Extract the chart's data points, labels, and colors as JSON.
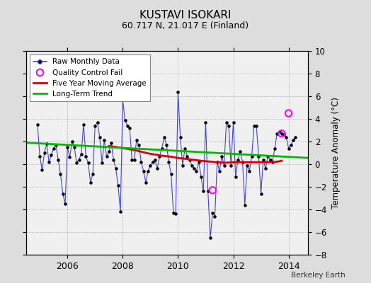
{
  "title": "KUSTAVI ISOKARI",
  "subtitle": "60.717 N, 21.017 E (Finland)",
  "ylabel": "Temperature Anomaly (°C)",
  "credit": "Berkeley Earth",
  "ylim": [
    -8,
    10
  ],
  "xlim": [
    2004.5,
    2014.7
  ],
  "yticks": [
    -8,
    -6,
    -4,
    -2,
    0,
    2,
    4,
    6,
    8,
    10
  ],
  "xticks": [
    2006,
    2008,
    2010,
    2012,
    2014
  ],
  "bg_color": "#dddddd",
  "plot_bg_color": "#f0f0f0",
  "raw_color": "#4444cc",
  "raw_dot_color": "#000000",
  "ma_color": "#dd0000",
  "trend_color": "#00bb00",
  "qc_fail_color": "#ff00ff",
  "raw_monthly": [
    [
      2004.917,
      3.5
    ],
    [
      2005.0,
      0.7
    ],
    [
      2005.083,
      -0.5
    ],
    [
      2005.167,
      1.0
    ],
    [
      2005.25,
      1.8
    ],
    [
      2005.333,
      0.2
    ],
    [
      2005.417,
      0.8
    ],
    [
      2005.5,
      1.4
    ],
    [
      2005.583,
      1.7
    ],
    [
      2005.667,
      0.4
    ],
    [
      2005.75,
      -0.9
    ],
    [
      2005.833,
      -2.6
    ],
    [
      2005.917,
      -3.5
    ],
    [
      2006.0,
      1.5
    ],
    [
      2006.083,
      0.6
    ],
    [
      2006.167,
      2.0
    ],
    [
      2006.25,
      1.5
    ],
    [
      2006.333,
      0.1
    ],
    [
      2006.417,
      0.4
    ],
    [
      2006.5,
      0.9
    ],
    [
      2006.583,
      3.5
    ],
    [
      2006.667,
      0.7
    ],
    [
      2006.75,
      0.1
    ],
    [
      2006.833,
      -1.6
    ],
    [
      2006.917,
      -0.9
    ],
    [
      2007.0,
      3.4
    ],
    [
      2007.083,
      3.7
    ],
    [
      2007.167,
      2.4
    ],
    [
      2007.25,
      0.1
    ],
    [
      2007.333,
      2.1
    ],
    [
      2007.417,
      0.7
    ],
    [
      2007.5,
      1.1
    ],
    [
      2007.583,
      1.9
    ],
    [
      2007.667,
      0.4
    ],
    [
      2007.75,
      -0.4
    ],
    [
      2007.833,
      -1.9
    ],
    [
      2007.917,
      -4.2
    ],
    [
      2008.0,
      5.7
    ],
    [
      2008.083,
      3.9
    ],
    [
      2008.167,
      3.4
    ],
    [
      2008.25,
      3.2
    ],
    [
      2008.333,
      0.4
    ],
    [
      2008.417,
      0.4
    ],
    [
      2008.5,
      2.1
    ],
    [
      2008.583,
      1.7
    ],
    [
      2008.667,
      0.2
    ],
    [
      2008.75,
      -0.6
    ],
    [
      2008.833,
      -1.6
    ],
    [
      2008.917,
      -0.6
    ],
    [
      2009.0,
      -0.1
    ],
    [
      2009.083,
      0.2
    ],
    [
      2009.167,
      0.4
    ],
    [
      2009.25,
      -0.4
    ],
    [
      2009.333,
      0.7
    ],
    [
      2009.417,
      1.4
    ],
    [
      2009.5,
      2.4
    ],
    [
      2009.583,
      1.7
    ],
    [
      2009.667,
      0.2
    ],
    [
      2009.75,
      -0.9
    ],
    [
      2009.833,
      -4.3
    ],
    [
      2009.917,
      -4.4
    ],
    [
      2010.0,
      6.4
    ],
    [
      2010.083,
      2.4
    ],
    [
      2010.167,
      -0.1
    ],
    [
      2010.25,
      1.4
    ],
    [
      2010.333,
      0.7
    ],
    [
      2010.417,
      0.4
    ],
    [
      2010.5,
      -0.1
    ],
    [
      2010.583,
      -0.4
    ],
    [
      2010.667,
      -0.6
    ],
    [
      2010.75,
      0.2
    ],
    [
      2010.833,
      -1.1
    ],
    [
      2010.917,
      -2.4
    ],
    [
      2011.0,
      3.7
    ],
    [
      2011.083,
      -2.4
    ],
    [
      2011.167,
      -6.5
    ],
    [
      2011.25,
      -4.3
    ],
    [
      2011.333,
      -4.6
    ],
    [
      2011.417,
      0.2
    ],
    [
      2011.5,
      -0.6
    ],
    [
      2011.583,
      0.7
    ],
    [
      2011.667,
      -0.1
    ],
    [
      2011.75,
      3.7
    ],
    [
      2011.833,
      3.4
    ],
    [
      2011.917,
      -0.1
    ],
    [
      2012.0,
      3.7
    ],
    [
      2012.083,
      -1.1
    ],
    [
      2012.167,
      0.4
    ],
    [
      2012.25,
      1.1
    ],
    [
      2012.333,
      0.2
    ],
    [
      2012.417,
      -3.6
    ],
    [
      2012.5,
      -0.1
    ],
    [
      2012.583,
      -0.6
    ],
    [
      2012.667,
      0.7
    ],
    [
      2012.75,
      3.4
    ],
    [
      2012.833,
      3.4
    ],
    [
      2012.917,
      0.7
    ],
    [
      2013.0,
      -2.6
    ],
    [
      2013.083,
      0.4
    ],
    [
      2013.167,
      -0.4
    ],
    [
      2013.25,
      0.7
    ],
    [
      2013.333,
      0.4
    ],
    [
      2013.417,
      0.2
    ],
    [
      2013.5,
      1.4
    ],
    [
      2013.583,
      2.7
    ],
    [
      2013.667,
      2.9
    ],
    [
      2013.75,
      2.7
    ],
    [
      2013.833,
      2.6
    ],
    [
      2013.917,
      2.4
    ],
    [
      2014.0,
      1.4
    ],
    [
      2014.083,
      1.7
    ],
    [
      2014.167,
      2.1
    ],
    [
      2014.25,
      2.4
    ]
  ],
  "qc_fail_points": [
    [
      2011.25,
      -2.3
    ],
    [
      2013.75,
      2.7
    ],
    [
      2014.0,
      4.5
    ]
  ],
  "moving_avg": [
    [
      2007.5,
      1.6
    ],
    [
      2007.583,
      1.58
    ],
    [
      2007.667,
      1.55
    ],
    [
      2007.75,
      1.52
    ],
    [
      2007.833,
      1.48
    ],
    [
      2007.917,
      1.45
    ],
    [
      2008.0,
      1.42
    ],
    [
      2008.083,
      1.38
    ],
    [
      2008.167,
      1.35
    ],
    [
      2008.25,
      1.32
    ],
    [
      2008.333,
      1.28
    ],
    [
      2008.417,
      1.25
    ],
    [
      2008.5,
      1.2
    ],
    [
      2008.583,
      1.15
    ],
    [
      2008.667,
      1.1
    ],
    [
      2008.75,
      1.05
    ],
    [
      2008.833,
      1.0
    ],
    [
      2008.917,
      0.95
    ],
    [
      2009.0,
      0.92
    ],
    [
      2009.083,
      0.88
    ],
    [
      2009.167,
      0.85
    ],
    [
      2009.25,
      0.82
    ],
    [
      2009.333,
      0.78
    ],
    [
      2009.417,
      0.75
    ],
    [
      2009.5,
      0.72
    ],
    [
      2009.583,
      0.7
    ],
    [
      2009.667,
      0.68
    ],
    [
      2009.75,
      0.65
    ],
    [
      2009.833,
      0.62
    ],
    [
      2009.917,
      0.58
    ],
    [
      2010.0,
      0.55
    ],
    [
      2010.083,
      0.52
    ],
    [
      2010.167,
      0.5
    ],
    [
      2010.25,
      0.48
    ],
    [
      2010.333,
      0.45
    ],
    [
      2010.417,
      0.42
    ],
    [
      2010.5,
      0.4
    ],
    [
      2010.583,
      0.38
    ],
    [
      2010.667,
      0.35
    ],
    [
      2010.75,
      0.33
    ],
    [
      2010.833,
      0.3
    ],
    [
      2010.917,
      0.28
    ],
    [
      2011.0,
      0.26
    ],
    [
      2011.083,
      0.24
    ],
    [
      2011.167,
      0.22
    ],
    [
      2011.25,
      0.2
    ],
    [
      2011.333,
      0.18
    ],
    [
      2011.417,
      0.16
    ],
    [
      2011.5,
      0.15
    ],
    [
      2011.583,
      0.14
    ],
    [
      2011.667,
      0.13
    ],
    [
      2011.75,
      0.13
    ],
    [
      2011.833,
      0.14
    ],
    [
      2011.917,
      0.15
    ],
    [
      2012.0,
      0.16
    ],
    [
      2012.083,
      0.16
    ],
    [
      2012.167,
      0.17
    ],
    [
      2012.25,
      0.17
    ],
    [
      2012.333,
      0.17
    ],
    [
      2012.417,
      0.17
    ],
    [
      2012.5,
      0.17
    ],
    [
      2012.583,
      0.17
    ],
    [
      2012.667,
      0.17
    ],
    [
      2012.75,
      0.17
    ],
    [
      2012.833,
      0.17
    ],
    [
      2012.917,
      0.17
    ],
    [
      2013.0,
      0.17
    ],
    [
      2013.083,
      0.17
    ],
    [
      2013.167,
      0.18
    ],
    [
      2013.25,
      0.18
    ],
    [
      2013.333,
      0.18
    ],
    [
      2013.417,
      0.19
    ],
    [
      2013.5,
      0.2
    ],
    [
      2013.583,
      0.22
    ],
    [
      2013.667,
      0.25
    ],
    [
      2013.75,
      0.3
    ]
  ],
  "trend_line": [
    [
      2004.5,
      1.9
    ],
    [
      2014.7,
      0.55
    ]
  ]
}
